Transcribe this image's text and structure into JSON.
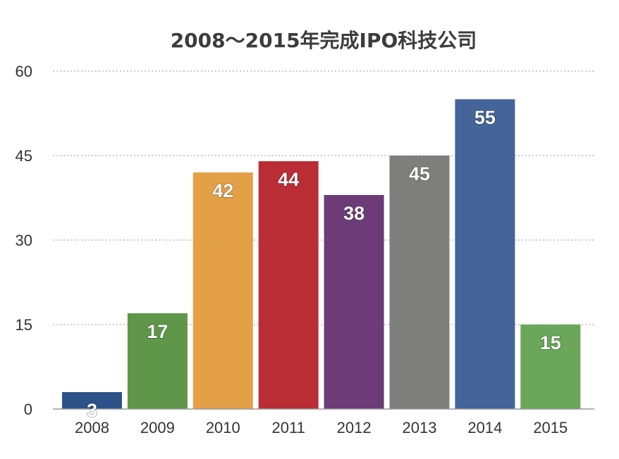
{
  "chart_data": {
    "type": "bar",
    "title": "2008～2015年完成IPO科技公司",
    "xlabel": "",
    "ylabel": "",
    "categories": [
      "2008",
      "2009",
      "2010",
      "2011",
      "2012",
      "2013",
      "2014",
      "2015"
    ],
    "values": [
      3,
      17,
      42,
      44,
      38,
      45,
      55,
      15
    ],
    "data_labels": [
      "3",
      "17",
      "42",
      "44",
      "38",
      "45",
      "55",
      "15"
    ],
    "ylim": [
      0,
      60
    ],
    "y_ticks": [
      0,
      15,
      30,
      45,
      60
    ],
    "y_tick_labels": [
      "0",
      "15",
      "30",
      "45",
      "60"
    ],
    "grid": true,
    "legend": "none",
    "bar_colors": [
      "#2d5289",
      "#5f964a",
      "#e4a046",
      "#bb2d35",
      "#6c3b78",
      "#7e7f7d",
      "#45659a",
      "#6aa75a"
    ]
  }
}
